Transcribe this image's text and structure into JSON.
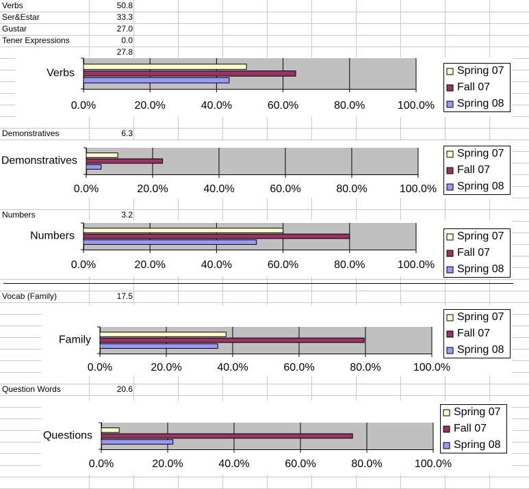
{
  "sheet": {
    "rows": [
      {
        "label": "Verbs",
        "value": "50.8"
      },
      {
        "label": "Ser&Estar",
        "value": "33.3"
      },
      {
        "label": "Gustar",
        "value": "27.0"
      },
      {
        "label": "Tener Expressions",
        "value": "0.0"
      },
      {
        "value": "27.8"
      },
      {
        "label": "Demonstratives",
        "value": "6.3"
      },
      {
        "label": "Numbers",
        "value": "3.2"
      },
      {
        "label": "Vocab (Family)",
        "value": "17.5"
      },
      {
        "label": "Question Words",
        "value": "20.6"
      }
    ]
  },
  "chart_data": [
    {
      "type": "bar",
      "orientation": "horizontal",
      "categories": [
        "Verbs"
      ],
      "series": [
        {
          "name": "Spring 07",
          "color": "#ffffcc",
          "values": [
            49
          ]
        },
        {
          "name": "Fall 07",
          "color": "#993366",
          "values": [
            63.8
          ]
        },
        {
          "name": "Spring 08",
          "color": "#9999ff",
          "values": [
            43.8
          ]
        }
      ],
      "xlim": [
        0,
        100
      ],
      "xticks": [
        {
          "value": 0,
          "label": "0.0%"
        },
        {
          "value": 20,
          "label": "20.0%"
        },
        {
          "value": 40,
          "label": "40.0%"
        },
        {
          "value": 60,
          "label": "60.0%"
        },
        {
          "value": 80,
          "label": "80.0%"
        },
        {
          "value": 100,
          "label": "100.0%"
        }
      ],
      "grid": true,
      "legend": "right"
    },
    {
      "type": "bar",
      "orientation": "horizontal",
      "categories": [
        "Demonstratives"
      ],
      "series": [
        {
          "name": "Spring 07",
          "color": "#ffffcc",
          "values": [
            9.5
          ]
        },
        {
          "name": "Fall 07",
          "color": "#993366",
          "values": [
            23
          ]
        },
        {
          "name": "Spring 08",
          "color": "#9999ff",
          "values": [
            4.5
          ]
        }
      ],
      "xlim": [
        0,
        100
      ],
      "xticks": [
        {
          "value": 0,
          "label": "0.0%"
        },
        {
          "value": 20,
          "label": "20.0%"
        },
        {
          "value": 40,
          "label": "40.0%"
        },
        {
          "value": 60,
          "label": "60.0%"
        },
        {
          "value": 80,
          "label": "80.0%"
        },
        {
          "value": 100,
          "label": "100.0%"
        }
      ],
      "grid": true,
      "legend": "right"
    },
    {
      "type": "bar",
      "orientation": "horizontal",
      "categories": [
        "Numbers"
      ],
      "series": [
        {
          "name": "Spring 07",
          "color": "#ffffcc",
          "values": [
            60
          ]
        },
        {
          "name": "Fall 07",
          "color": "#993366",
          "values": [
            80
          ]
        },
        {
          "name": "Spring 08",
          "color": "#9999ff",
          "values": [
            52
          ]
        }
      ],
      "xlim": [
        0,
        100
      ],
      "xticks": [
        {
          "value": 0,
          "label": "0.0%"
        },
        {
          "value": 20,
          "label": "20.0%"
        },
        {
          "value": 40,
          "label": "40.0%"
        },
        {
          "value": 60,
          "label": "60.0%"
        },
        {
          "value": 80,
          "label": "80.0%"
        },
        {
          "value": 100,
          "label": "100.0%"
        }
      ],
      "grid": true,
      "legend": "right"
    },
    {
      "type": "bar",
      "orientation": "horizontal",
      "categories": [
        "Family"
      ],
      "series": [
        {
          "name": "Spring 07",
          "color": "#ffffcc",
          "values": [
            38
          ]
        },
        {
          "name": "Fall 07",
          "color": "#993366",
          "values": [
            79.6
          ]
        },
        {
          "name": "Spring 08",
          "color": "#9999ff",
          "values": [
            35.5
          ]
        }
      ],
      "xlim": [
        0,
        100
      ],
      "xticks": [
        {
          "value": 0,
          "label": "0.0%"
        },
        {
          "value": 20,
          "label": "20.0%"
        },
        {
          "value": 40,
          "label": "40.0%"
        },
        {
          "value": 60,
          "label": "60.0%"
        },
        {
          "value": 80,
          "label": "80.0%"
        },
        {
          "value": 100,
          "label": "100.0%"
        }
      ],
      "grid": true,
      "legend": "right"
    },
    {
      "type": "bar",
      "orientation": "horizontal",
      "categories": [
        "Questions"
      ],
      "series": [
        {
          "name": "Spring 07",
          "color": "#ffffcc",
          "values": [
            5.4
          ]
        },
        {
          "name": "Fall 07",
          "color": "#993366",
          "values": [
            75.7
          ]
        },
        {
          "name": "Spring 08",
          "color": "#9999ff",
          "values": [
            21.6
          ]
        }
      ],
      "xlim": [
        0,
        100
      ],
      "xticks": [
        {
          "value": 0,
          "label": "0.0%"
        },
        {
          "value": 20,
          "label": "20.0%"
        },
        {
          "value": 40,
          "label": "40.0%"
        },
        {
          "value": 60,
          "label": "60.0%"
        },
        {
          "value": 80,
          "label": "80.0%"
        },
        {
          "value": 100,
          "label": "100.0%"
        }
      ],
      "grid": true,
      "legend": "right"
    }
  ]
}
